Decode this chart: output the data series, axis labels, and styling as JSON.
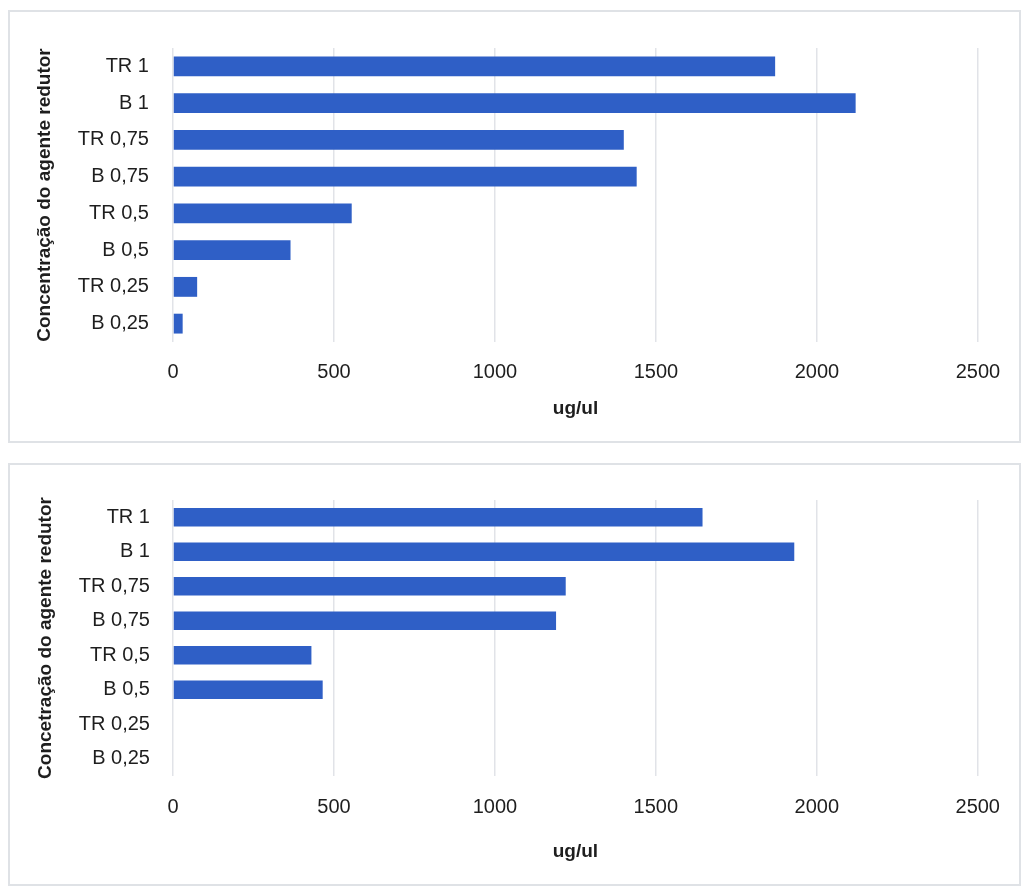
{
  "chart_data": [
    {
      "type": "bar",
      "orientation": "horizontal",
      "categories": [
        "TR 1",
        "B 1",
        "TR 0,75",
        "B 0,75",
        "TR 0,5",
        "B 0,5",
        "TR 0,25",
        "B 0,25"
      ],
      "values": [
        1870,
        2120,
        1400,
        1440,
        555,
        365,
        75,
        30
      ],
      "color": "#2f5fc6",
      "xlabel": "ug/ul",
      "ylabel": "Concentração do agente redutor",
      "xlim": [
        0,
        2500
      ],
      "xticks": [
        0,
        500,
        1000,
        1500,
        2000,
        2500
      ],
      "grid": "x"
    },
    {
      "type": "bar",
      "orientation": "horizontal",
      "categories": [
        "TR 1",
        "B 1",
        "TR 0,75",
        "B 0,75",
        "TR 0,5",
        "B 0,5",
        "TR 0,25",
        "B 0,25"
      ],
      "values": [
        1645,
        1930,
        1220,
        1190,
        430,
        465,
        null,
        null
      ],
      "color": "#2f5fc6",
      "xlabel": "ug/ul",
      "ylabel": "Concetração do agente redutor",
      "xlim": [
        0,
        2500
      ],
      "xticks": [
        0,
        500,
        1000,
        1500,
        2000,
        2500
      ],
      "grid": "x"
    }
  ]
}
